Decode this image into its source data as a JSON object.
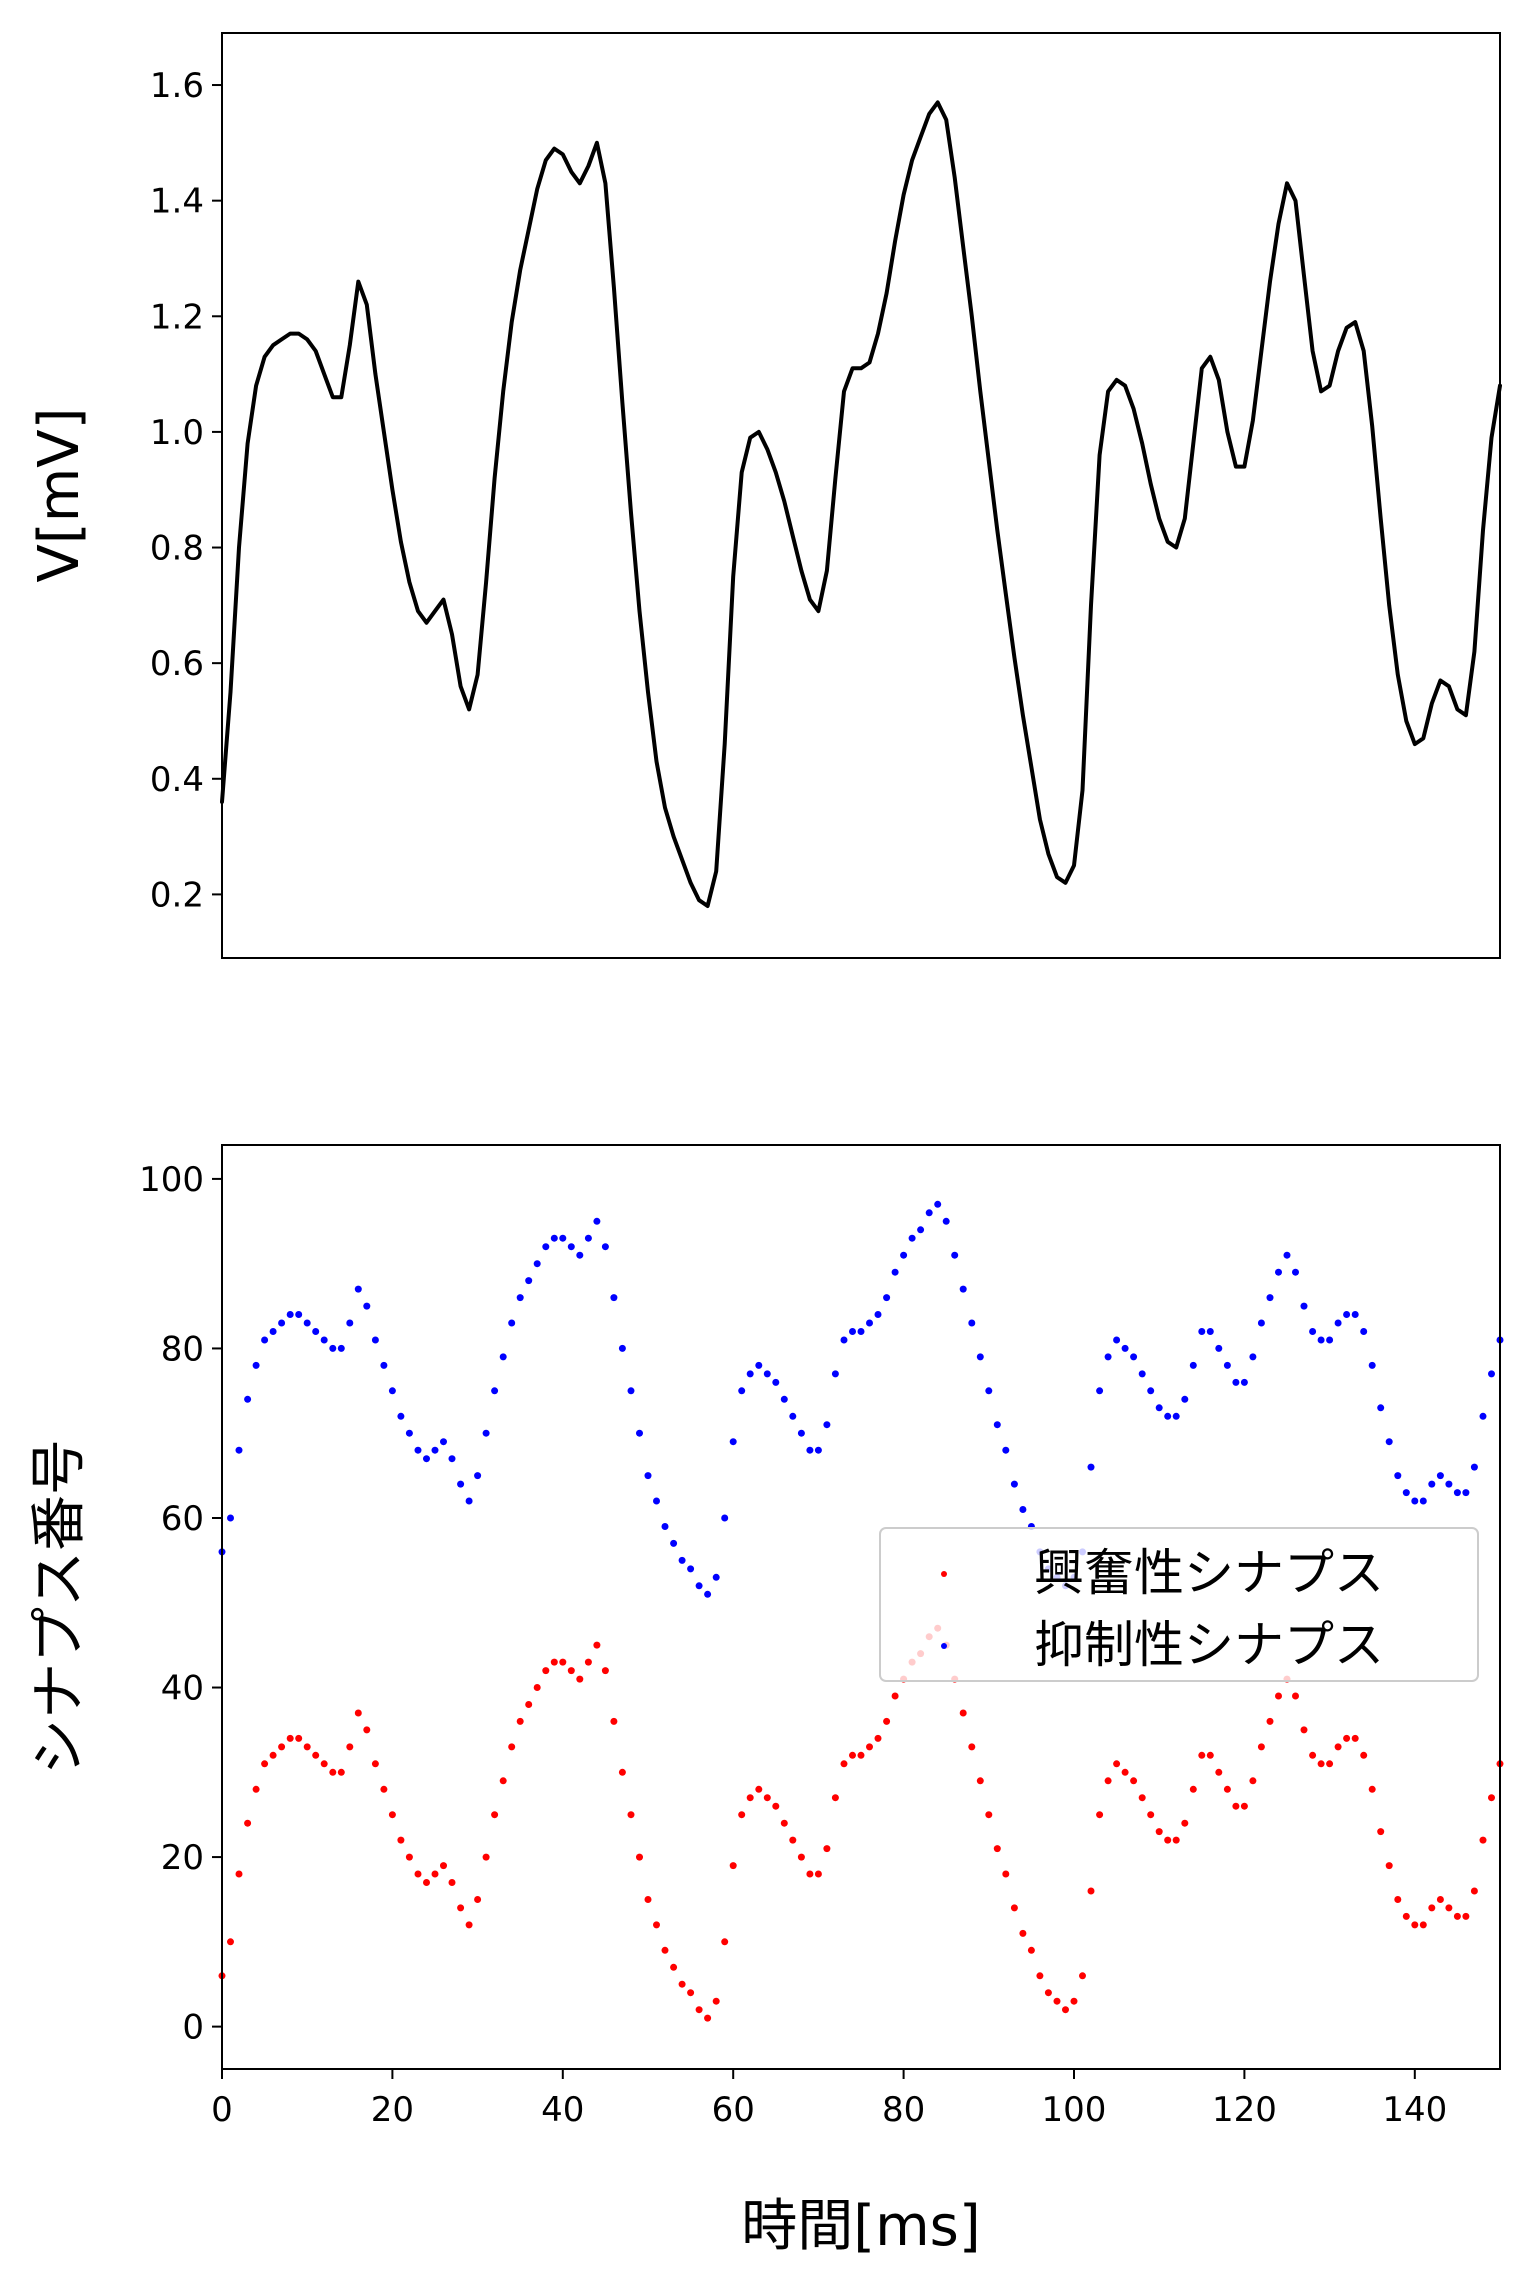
{
  "chart_data": [
    {
      "type": "line",
      "ylabel": "V[mV]",
      "xlim": [
        0,
        150
      ],
      "ylim": [
        0.09,
        1.69
      ],
      "yticks": [
        0.2,
        0.4,
        0.6,
        0.8,
        1.0,
        1.2,
        1.4,
        1.6
      ],
      "ytick_labels": [
        "0.2",
        "0.4",
        "0.6",
        "0.8",
        "1.0",
        "1.2",
        "1.4",
        "1.6"
      ],
      "grid": false,
      "series": [
        {
          "color": "#000000",
          "x": [
            0,
            1,
            2,
            3,
            4,
            5,
            6,
            7,
            8,
            9,
            10,
            11,
            12,
            13,
            14,
            15,
            16,
            17,
            18,
            19,
            20,
            21,
            22,
            23,
            24,
            25,
            26,
            27,
            28,
            29,
            30,
            31,
            32,
            33,
            34,
            35,
            36,
            37,
            38,
            39,
            40,
            41,
            42,
            43,
            44,
            45,
            46,
            47,
            48,
            49,
            50,
            51,
            52,
            53,
            54,
            55,
            56,
            57,
            58,
            59,
            60,
            61,
            62,
            63,
            64,
            65,
            66,
            67,
            68,
            69,
            70,
            71,
            72,
            73,
            74,
            75,
            76,
            77,
            78,
            79,
            80,
            81,
            82,
            83,
            84,
            85,
            86,
            87,
            88,
            89,
            90,
            91,
            92,
            93,
            94,
            95,
            96,
            97,
            98,
            99,
            100,
            101,
            102,
            103,
            104,
            105,
            106,
            107,
            108,
            109,
            110,
            111,
            112,
            113,
            114,
            115,
            116,
            117,
            118,
            119,
            120,
            121,
            122,
            123,
            124,
            125,
            126,
            127,
            128,
            129,
            130,
            131,
            132,
            133,
            134,
            135,
            136,
            137,
            138,
            139,
            140,
            141,
            142,
            143,
            144,
            145,
            146,
            147,
            148,
            149,
            150
          ],
          "y": [
            0.36,
            0.55,
            0.8,
            0.98,
            1.08,
            1.13,
            1.15,
            1.16,
            1.17,
            1.17,
            1.16,
            1.14,
            1.1,
            1.06,
            1.06,
            1.15,
            1.26,
            1.22,
            1.1,
            1.0,
            0.9,
            0.81,
            0.74,
            0.69,
            0.67,
            0.69,
            0.71,
            0.65,
            0.56,
            0.52,
            0.58,
            0.74,
            0.92,
            1.07,
            1.19,
            1.28,
            1.35,
            1.42,
            1.47,
            1.49,
            1.48,
            1.45,
            1.43,
            1.46,
            1.5,
            1.43,
            1.25,
            1.05,
            0.86,
            0.69,
            0.55,
            0.43,
            0.35,
            0.3,
            0.26,
            0.22,
            0.19,
            0.18,
            0.24,
            0.46,
            0.75,
            0.93,
            0.99,
            1.0,
            0.97,
            0.93,
            0.88,
            0.82,
            0.76,
            0.71,
            0.69,
            0.76,
            0.92,
            1.07,
            1.11,
            1.11,
            1.12,
            1.17,
            1.24,
            1.33,
            1.41,
            1.47,
            1.51,
            1.55,
            1.57,
            1.54,
            1.44,
            1.32,
            1.2,
            1.07,
            0.95,
            0.83,
            0.72,
            0.61,
            0.51,
            0.42,
            0.33,
            0.27,
            0.23,
            0.22,
            0.25,
            0.38,
            0.7,
            0.96,
            1.07,
            1.09,
            1.08,
            1.04,
            0.98,
            0.91,
            0.85,
            0.81,
            0.8,
            0.85,
            0.98,
            1.11,
            1.13,
            1.09,
            1.0,
            0.94,
            0.94,
            1.02,
            1.14,
            1.26,
            1.36,
            1.43,
            1.4,
            1.27,
            1.14,
            1.07,
            1.08,
            1.14,
            1.18,
            1.19,
            1.14,
            1.01,
            0.85,
            0.7,
            0.58,
            0.5,
            0.46,
            0.47,
            0.53,
            0.57,
            0.56,
            0.52,
            0.51,
            0.62,
            0.83,
            0.99,
            1.08
          ]
        }
      ]
    },
    {
      "type": "scatter",
      "xlabel": "時間[ms]",
      "ylabel": "シナプス番号",
      "xlim": [
        0,
        150
      ],
      "ylim": [
        -5,
        104
      ],
      "xticks": [
        0,
        20,
        40,
        60,
        80,
        100,
        120,
        140
      ],
      "xtick_labels": [
        "0",
        "20",
        "40",
        "60",
        "80",
        "100",
        "120",
        "140"
      ],
      "yticks": [
        0,
        20,
        40,
        60,
        80,
        100
      ],
      "ytick_labels": [
        "0",
        "20",
        "40",
        "60",
        "80",
        "100"
      ],
      "grid": false,
      "legend_position": "center-right",
      "legend": [
        {
          "label": "興奮性シナプス",
          "color": "#ff0000"
        },
        {
          "label": "抑制性シナプス",
          "color": "#0000ff"
        }
      ],
      "series": [
        {
          "name": "興奮性シナプス",
          "color": "#ff0000",
          "x": [
            0,
            1,
            2,
            3,
            4,
            5,
            6,
            7,
            8,
            9,
            10,
            11,
            12,
            13,
            14,
            15,
            16,
            17,
            18,
            19,
            20,
            21,
            22,
            23,
            24,
            25,
            26,
            27,
            28,
            29,
            30,
            31,
            32,
            33,
            34,
            35,
            36,
            37,
            38,
            39,
            40,
            41,
            42,
            43,
            44,
            45,
            46,
            47,
            48,
            49,
            50,
            51,
            52,
            53,
            54,
            55,
            56,
            57,
            58,
            59,
            60,
            61,
            62,
            63,
            64,
            65,
            66,
            67,
            68,
            69,
            70,
            71,
            72,
            73,
            74,
            75,
            76,
            77,
            78,
            79,
            80,
            81,
            82,
            83,
            84,
            85,
            86,
            87,
            88,
            89,
            90,
            91,
            92,
            93,
            94,
            95,
            96,
            97,
            98,
            99,
            100,
            101,
            102,
            103,
            104,
            105,
            106,
            107,
            108,
            109,
            110,
            111,
            112,
            113,
            114,
            115,
            116,
            117,
            118,
            119,
            120,
            121,
            122,
            123,
            124,
            125,
            126,
            127,
            128,
            129,
            130,
            131,
            132,
            133,
            134,
            135,
            136,
            137,
            138,
            139,
            140,
            141,
            142,
            143,
            144,
            145,
            146,
            147,
            148,
            149,
            150
          ],
          "y": [
            6,
            10,
            18,
            24,
            28,
            31,
            32,
            33,
            34,
            34,
            33,
            32,
            31,
            30,
            30,
            33,
            37,
            35,
            31,
            28,
            25,
            22,
            20,
            18,
            17,
            18,
            19,
            17,
            14,
            12,
            15,
            20,
            25,
            29,
            33,
            36,
            38,
            40,
            42,
            43,
            43,
            42,
            41,
            43,
            45,
            42,
            36,
            30,
            25,
            20,
            15,
            12,
            9,
            7,
            5,
            4,
            2,
            1,
            3,
            10,
            19,
            25,
            27,
            28,
            27,
            26,
            24,
            22,
            20,
            18,
            18,
            21,
            27,
            31,
            32,
            32,
            33,
            34,
            36,
            39,
            41,
            43,
            44,
            46,
            47,
            45,
            41,
            37,
            33,
            29,
            25,
            21,
            18,
            14,
            11,
            9,
            6,
            4,
            3,
            2,
            3,
            6,
            16,
            25,
            29,
            31,
            30,
            29,
            27,
            25,
            23,
            22,
            22,
            24,
            28,
            32,
            32,
            30,
            28,
            26,
            26,
            29,
            33,
            36,
            39,
            41,
            39,
            35,
            32,
            31,
            31,
            33,
            34,
            34,
            32,
            28,
            23,
            19,
            15,
            13,
            12,
            12,
            14,
            15,
            14,
            13,
            13,
            16,
            22,
            27,
            31
          ]
        },
        {
          "name": "抑制性シナプス",
          "color": "#0000ff",
          "x": [
            0,
            1,
            2,
            3,
            4,
            5,
            6,
            7,
            8,
            9,
            10,
            11,
            12,
            13,
            14,
            15,
            16,
            17,
            18,
            19,
            20,
            21,
            22,
            23,
            24,
            25,
            26,
            27,
            28,
            29,
            30,
            31,
            32,
            33,
            34,
            35,
            36,
            37,
            38,
            39,
            40,
            41,
            42,
            43,
            44,
            45,
            46,
            47,
            48,
            49,
            50,
            51,
            52,
            53,
            54,
            55,
            56,
            57,
            58,
            59,
            60,
            61,
            62,
            63,
            64,
            65,
            66,
            67,
            68,
            69,
            70,
            71,
            72,
            73,
            74,
            75,
            76,
            77,
            78,
            79,
            80,
            81,
            82,
            83,
            84,
            85,
            86,
            87,
            88,
            89,
            90,
            91,
            92,
            93,
            94,
            95,
            96,
            97,
            98,
            99,
            100,
            101,
            102,
            103,
            104,
            105,
            106,
            107,
            108,
            109,
            110,
            111,
            112,
            113,
            114,
            115,
            116,
            117,
            118,
            119,
            120,
            121,
            122,
            123,
            124,
            125,
            126,
            127,
            128,
            129,
            130,
            131,
            132,
            133,
            134,
            135,
            136,
            137,
            138,
            139,
            140,
            141,
            142,
            143,
            144,
            145,
            146,
            147,
            148,
            149,
            150
          ],
          "y": [
            56,
            60,
            68,
            74,
            78,
            81,
            82,
            83,
            84,
            84,
            83,
            82,
            81,
            80,
            80,
            83,
            87,
            85,
            81,
            78,
            75,
            72,
            70,
            68,
            67,
            68,
            69,
            67,
            64,
            62,
            65,
            70,
            75,
            79,
            83,
            86,
            88,
            90,
            92,
            93,
            93,
            92,
            91,
            93,
            95,
            92,
            86,
            80,
            75,
            70,
            65,
            62,
            59,
            57,
            55,
            54,
            52,
            51,
            53,
            60,
            69,
            75,
            77,
            78,
            77,
            76,
            74,
            72,
            70,
            68,
            68,
            71,
            77,
            81,
            82,
            82,
            83,
            84,
            86,
            89,
            91,
            93,
            94,
            96,
            97,
            95,
            91,
            87,
            83,
            79,
            75,
            71,
            68,
            64,
            61,
            59,
            56,
            54,
            53,
            52,
            53,
            56,
            66,
            75,
            79,
            81,
            80,
            79,
            77,
            75,
            73,
            72,
            72,
            74,
            78,
            82,
            82,
            80,
            78,
            76,
            76,
            79,
            83,
            86,
            89,
            91,
            89,
            85,
            82,
            81,
            81,
            83,
            84,
            84,
            82,
            78,
            73,
            69,
            65,
            63,
            62,
            62,
            64,
            65,
            64,
            63,
            63,
            66,
            72,
            77,
            81
          ]
        }
      ]
    }
  ]
}
